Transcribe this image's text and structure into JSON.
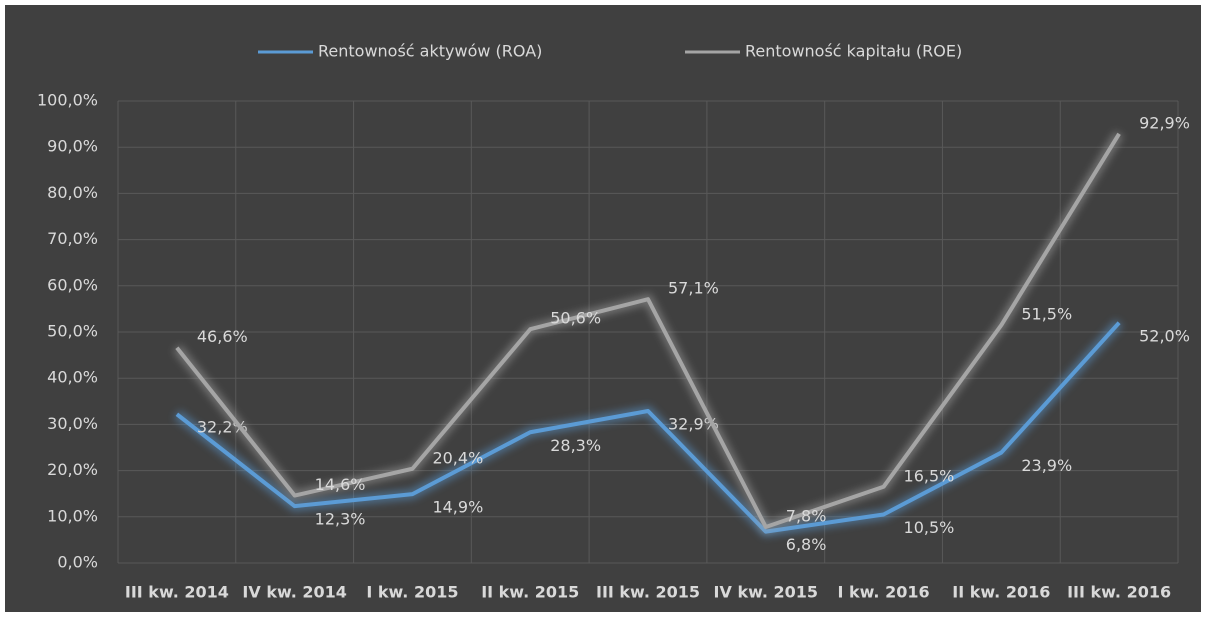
{
  "chart_data": {
    "type": "line",
    "categories": [
      "III kw. 2014",
      "IV kw. 2014",
      "I kw. 2015",
      "II kw. 2015",
      "III kw. 2015",
      "IV kw. 2015",
      "I kw. 2016",
      "II kw. 2016",
      "III kw. 2016"
    ],
    "series": [
      {
        "name": "Rentowność aktywów (ROA)",
        "color": "#5b9bd5",
        "values": [
          32.2,
          12.3,
          14.9,
          28.3,
          32.9,
          6.8,
          10.5,
          23.9,
          52.0
        ],
        "value_labels": [
          "32,2%",
          "12,3%",
          "14,9%",
          "28,3%",
          "32,9%",
          "6,8%",
          "10,5%",
          "23,9%",
          "52,0%"
        ]
      },
      {
        "name": "Rentowność kapitału (ROE)",
        "color": "#a5a5a5",
        "values": [
          46.6,
          14.6,
          20.4,
          50.6,
          57.1,
          7.8,
          16.5,
          51.5,
          92.9
        ],
        "value_labels": [
          "46,6%",
          "14,6%",
          "20,4%",
          "50,6%",
          "57,1%",
          "7,8%",
          "16,5%",
          "51,5%",
          "92,9%"
        ]
      }
    ],
    "ylim": [
      0,
      100
    ],
    "yticks": [
      {
        "value": 0,
        "label": "0,0%"
      },
      {
        "value": 10,
        "label": "10,0%"
      },
      {
        "value": 20,
        "label": "20,0%"
      },
      {
        "value": 30,
        "label": "30,0%"
      },
      {
        "value": 40,
        "label": "40,0%"
      },
      {
        "value": 50,
        "label": "50,0%"
      },
      {
        "value": 60,
        "label": "60,0%"
      },
      {
        "value": 70,
        "label": "70,0%"
      },
      {
        "value": 80,
        "label": "80,0%"
      },
      {
        "value": 90,
        "label": "90,0%"
      },
      {
        "value": 100,
        "label": "100,0%"
      }
    ],
    "grid": true,
    "legend": "top"
  }
}
